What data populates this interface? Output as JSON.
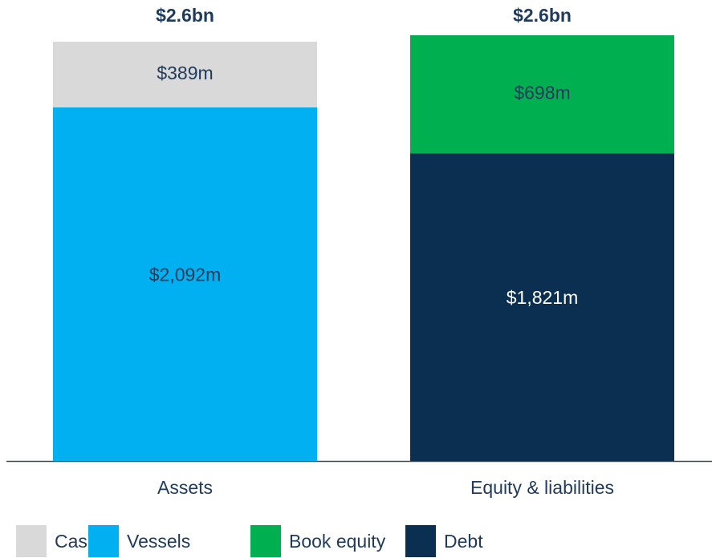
{
  "chart_data": {
    "type": "stacked_bar",
    "categories": [
      "Assets",
      "Equity & liabilities"
    ],
    "series": [
      {
        "name": "Cash",
        "color": "#d9d9d9",
        "values": [
          389,
          null
        ],
        "value_labels": [
          "$389m",
          null
        ]
      },
      {
        "name": "Vessels",
        "color": "#00b0f0",
        "values": [
          2092,
          null
        ],
        "value_labels": [
          "$2,092m",
          null
        ]
      },
      {
        "name": "Book equity",
        "color": "#00b050",
        "values": [
          null,
          698
        ],
        "value_labels": [
          null,
          "$698m"
        ]
      },
      {
        "name": "Debt",
        "color": "#0b2f50",
        "values": [
          null,
          1821
        ],
        "value_labels": [
          null,
          "$1,821m"
        ]
      }
    ],
    "annotations": [
      "$2.6bn",
      "$2.6bn"
    ]
  }
}
